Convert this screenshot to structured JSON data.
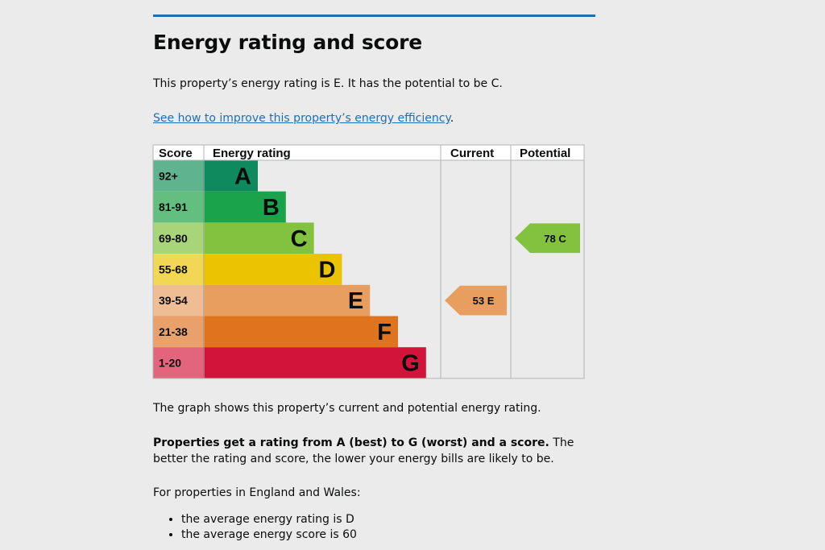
{
  "heading": "Energy rating and score",
  "intro": "This property’s energy rating is E. It has the potential to be C.",
  "improve_link": "See how to improve this property’s energy efficiency",
  "improve_suffix": ".",
  "graph_note": "The graph shows this property’s current and potential energy rating.",
  "ratings_bold": "Properties get a rating from A (best) to G (worst) and a score.",
  "ratings_rest": " The better the rating and score, the lower your energy bills are likely to be.",
  "averages_intro": "For properties in England and Wales:",
  "averages": [
    "the average energy rating is D",
    "the average energy score is 60"
  ],
  "chart_data": {
    "type": "bar",
    "columns": [
      "Score",
      "Energy rating",
      "Current",
      "Potential"
    ],
    "bands": [
      {
        "score": "92+",
        "letter": "A",
        "color": "#0f8a5f",
        "score_color": "#5fb48f"
      },
      {
        "score": "81-91",
        "letter": "B",
        "color": "#1aa34a",
        "score_color": "#62bf7f"
      },
      {
        "score": "69-80",
        "letter": "C",
        "color": "#82c23f",
        "score_color": "#a9d57a"
      },
      {
        "score": "55-68",
        "letter": "D",
        "color": "#ecc300",
        "score_color": "#f2d754"
      },
      {
        "score": "39-54",
        "letter": "E",
        "color": "#e89e5e",
        "score_color": "#efbd93"
      },
      {
        "score": "21-38",
        "letter": "F",
        "color": "#e0741e",
        "score_color": "#e9a06a"
      },
      {
        "score": "1-20",
        "letter": "G",
        "color": "#d3143a",
        "score_color": "#e2647d"
      }
    ],
    "current": {
      "score": 53,
      "letter": "E",
      "label": "53 E",
      "color": "#e89e5e"
    },
    "potential": {
      "score": 78,
      "letter": "C",
      "label": "78 C",
      "color": "#82c23f"
    }
  }
}
